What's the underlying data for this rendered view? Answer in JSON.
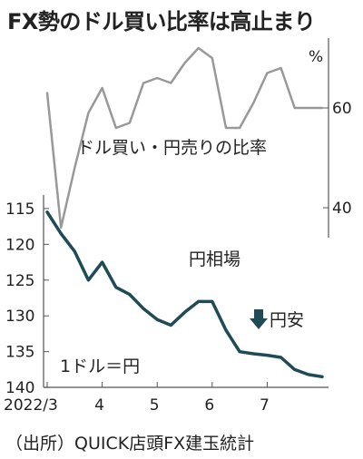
{
  "title": "FX勢のドル買い比率は高止まり",
  "source": "（出所）QUICK店頭FX建玉統計",
  "chart_data": {
    "type": "line",
    "x_tick_labels": [
      "2022/3",
      "4",
      "5",
      "6",
      "7"
    ],
    "x_range": [
      0,
      20
    ],
    "x_ticks": [
      0,
      4,
      8,
      12,
      16
    ],
    "series": [
      {
        "name": "ドル買い・円売りの比率",
        "color": "#999999",
        "axis": "right",
        "unit_label": "%",
        "ylim": [
          34,
          74
        ],
        "yticks": [
          40,
          60
        ],
        "x": [
          0,
          1,
          2,
          3,
          4,
          5,
          6,
          7,
          8,
          9,
          10,
          11,
          12,
          13,
          14,
          15,
          16,
          17,
          18,
          19,
          20
        ],
        "values": [
          63,
          36,
          48,
          59,
          64,
          56,
          57,
          65,
          66,
          65,
          69,
          72,
          70,
          56,
          56,
          61,
          67,
          68,
          60,
          60,
          60
        ]
      },
      {
        "name": "円相場",
        "color": "#1f4b57",
        "axis": "left",
        "unit_label": "1ドル＝円",
        "ylim": [
          114,
          141
        ],
        "yticks": [
          115,
          120,
          125,
          130,
          135,
          140
        ],
        "inverted": true,
        "x": [
          0,
          1,
          2,
          3,
          4,
          5,
          6,
          7,
          8,
          9,
          10,
          11,
          12,
          13,
          14,
          15,
          16,
          17,
          18,
          19,
          20
        ],
        "values": [
          115.5,
          118.5,
          121,
          125,
          122.5,
          126,
          127,
          129,
          130.5,
          131.3,
          129.5,
          128,
          128,
          132,
          135,
          135.3,
          135.5,
          135.8,
          137.5,
          138.2,
          138.5
        ]
      }
    ],
    "annotations": {
      "ratio_label": "ドル買い・円売りの比率",
      "yen_label": "円相場",
      "yen_weak": "円安",
      "yen_unit": "1ドル＝円",
      "pct_unit": "%"
    }
  }
}
